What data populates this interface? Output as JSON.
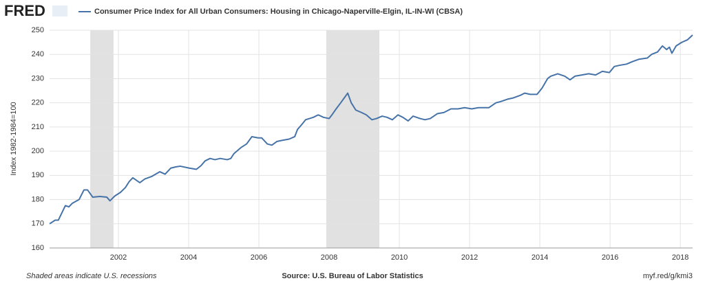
{
  "brand": "FRED",
  "chart_data": {
    "type": "line",
    "title": "Consumer Price Index for All Urban Consumers: Housing in Chicago-Naperville-Elgin, IL-IN-WI (CBSA)",
    "ylabel": "Index 1982-1984=100",
    "series": [
      {
        "name": "Consumer Price Index for All Urban Consumers: Housing in Chicago-Naperville-Elgin, IL-IN-WI (CBSA)",
        "color": "#4572a7",
        "x": [
          2000.04,
          2000.2,
          2000.29,
          2000.49,
          2000.59,
          2000.69,
          2000.88,
          2001.02,
          2001.12,
          2001.27,
          2001.47,
          2001.67,
          2001.76,
          2001.9,
          2002.06,
          2002.2,
          2002.31,
          2002.41,
          2002.61,
          2002.75,
          2002.94,
          2003.18,
          2003.33,
          2003.49,
          2003.63,
          2003.76,
          2004.02,
          2004.22,
          2004.35,
          2004.47,
          2004.61,
          2004.75,
          2004.9,
          2005.1,
          2005.2,
          2005.29,
          2005.49,
          2005.65,
          2005.8,
          2005.98,
          2006.08,
          2006.24,
          2006.37,
          2006.51,
          2006.67,
          2006.86,
          2007.02,
          2007.1,
          2007.22,
          2007.33,
          2007.55,
          2007.69,
          2007.84,
          2008.0,
          2008.08,
          2008.2,
          2008.33,
          2008.43,
          2008.53,
          2008.63,
          2008.76,
          2008.92,
          2009.06,
          2009.22,
          2009.35,
          2009.51,
          2009.65,
          2009.8,
          2009.96,
          2010.1,
          2010.25,
          2010.39,
          2010.59,
          2010.73,
          2010.88,
          2011.08,
          2011.27,
          2011.47,
          2011.67,
          2011.86,
          2012.06,
          2012.25,
          2012.55,
          2012.75,
          2012.88,
          2013.08,
          2013.24,
          2013.43,
          2013.57,
          2013.73,
          2013.92,
          2014.06,
          2014.22,
          2014.31,
          2014.51,
          2014.71,
          2014.86,
          2015.0,
          2015.2,
          2015.39,
          2015.59,
          2015.78,
          2015.98,
          2016.12,
          2016.27,
          2016.47,
          2016.63,
          2016.82,
          2017.06,
          2017.18,
          2017.35,
          2017.49,
          2017.61,
          2017.69,
          2017.76,
          2017.88,
          2018.04,
          2018.2,
          2018.35
        ],
        "values": [
          170,
          171.5,
          171.5,
          177.5,
          177,
          178.5,
          180,
          184,
          184,
          181,
          181.3,
          181,
          179.5,
          181.5,
          183,
          185,
          187.5,
          189,
          187,
          188.5,
          189.5,
          191.5,
          190.5,
          193,
          193.5,
          193.8,
          193,
          192.5,
          194,
          196,
          197,
          196.5,
          197,
          196.5,
          197,
          199,
          201.5,
          203,
          206,
          205.5,
          205.5,
          203,
          202.5,
          204,
          204.5,
          205,
          206,
          209,
          211,
          213,
          214,
          215,
          214,
          213.5,
          215,
          217.5,
          220,
          222,
          224,
          220,
          217,
          216,
          215,
          213,
          213.5,
          214.5,
          214,
          213,
          215,
          214,
          212.5,
          214.5,
          213.5,
          213,
          213.5,
          215.5,
          216,
          217.5,
          217.5,
          218,
          217.5,
          218,
          218,
          220,
          220.5,
          221.5,
          222,
          223,
          224,
          223.5,
          223.5,
          226,
          230,
          231,
          232,
          231,
          229.5,
          231,
          231.5,
          232,
          231.5,
          233,
          232.5,
          235,
          235.5,
          236,
          237,
          238,
          238.5,
          240,
          241,
          243.5,
          242,
          243,
          240.5,
          243.5,
          245,
          246,
          248
        ]
      }
    ],
    "recessions": [
      [
        2001.2,
        2001.86
      ],
      [
        2007.92,
        2009.43
      ]
    ],
    "xlim": [
      2000.04,
      2018.35
    ],
    "xticks": [
      2002,
      2004,
      2006,
      2008,
      2010,
      2012,
      2014,
      2016,
      2018
    ],
    "ylim": [
      160,
      250
    ],
    "yticks": [
      160,
      170,
      180,
      190,
      200,
      210,
      220,
      230,
      240,
      250
    ],
    "grid": true
  },
  "footer": {
    "note": "Shaded areas indicate U.S. recessions",
    "source": "Source: U.S. Bureau of Labor Statistics",
    "link": "myf.red/g/kmi3"
  }
}
